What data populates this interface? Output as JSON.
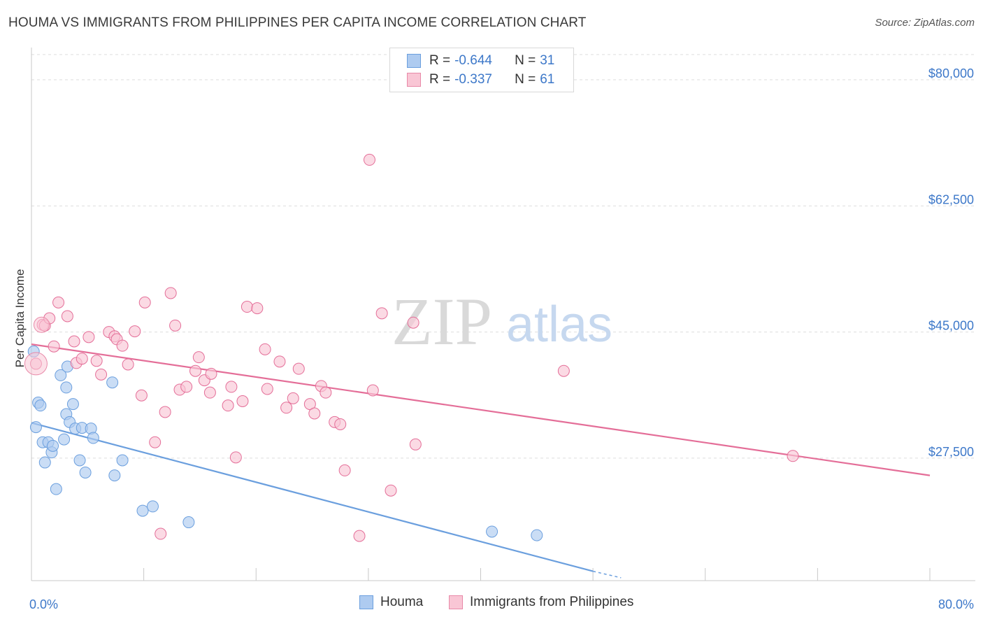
{
  "title": "HOUMA VS IMMIGRANTS FROM PHILIPPINES PER CAPITA INCOME CORRELATION CHART",
  "source": "Source: ZipAtlas.com",
  "watermark": {
    "zip": "ZIP",
    "atlas": "atlas"
  },
  "legend": {
    "rows": [
      {
        "r_label": "R =",
        "r_value": "-0.644",
        "n_label": "N =",
        "n_value": "31",
        "color": "#aecbf0",
        "border": "#6b9fde"
      },
      {
        "r_label": "R =",
        "r_value": "-0.337",
        "n_label": "N =",
        "n_value": "61",
        "color": "#f9c6d5",
        "border": "#e889a8"
      }
    ]
  },
  "bottom_legend": [
    {
      "label": "Houma",
      "color": "#aecbf0",
      "border": "#6b9fde"
    },
    {
      "label": "Immigrants from Philippines",
      "color": "#f9c6d5",
      "border": "#e889a8"
    }
  ],
  "chart_data": {
    "type": "scatter",
    "title": "HOUMA VS IMMIGRANTS FROM PHILIPPINES PER CAPITA INCOME CORRELATION CHART",
    "xlabel": "",
    "ylabel": "Per Capita Income",
    "xlim": [
      0,
      80
    ],
    "ylim": [
      10500,
      83500
    ],
    "x_tick_labels": [
      "0.0%",
      "80.0%"
    ],
    "y_ticks": [
      27500,
      45000,
      62500,
      80000
    ],
    "y_tick_labels": [
      "$27,500",
      "$45,000",
      "$62,500",
      "$80,000"
    ],
    "grid": true,
    "legend_position": "top-center",
    "series": [
      {
        "name": "Houma",
        "color": "#6b9fde",
        "fill": "#aecbf0",
        "points": [
          [
            0.2,
            42300
          ],
          [
            0.4,
            31800
          ],
          [
            0.6,
            35200
          ],
          [
            0.8,
            34800
          ],
          [
            1.0,
            29700
          ],
          [
            1.2,
            26900
          ],
          [
            1.5,
            29700
          ],
          [
            1.8,
            28300
          ],
          [
            1.9,
            29200
          ],
          [
            2.2,
            23200
          ],
          [
            2.6,
            39000
          ],
          [
            2.9,
            30100
          ],
          [
            3.1,
            33600
          ],
          [
            3.1,
            37300
          ],
          [
            3.2,
            40200
          ],
          [
            3.4,
            32500
          ],
          [
            3.7,
            35000
          ],
          [
            3.9,
            31600
          ],
          [
            4.3,
            27200
          ],
          [
            4.5,
            31700
          ],
          [
            4.8,
            25500
          ],
          [
            5.3,
            31600
          ],
          [
            5.5,
            30300
          ],
          [
            7.2,
            38000
          ],
          [
            7.4,
            25100
          ],
          [
            8.1,
            27200
          ],
          [
            9.9,
            20200
          ],
          [
            10.8,
            20800
          ],
          [
            14.0,
            18600
          ],
          [
            41.0,
            17300
          ],
          [
            45.0,
            16800
          ]
        ],
        "trend": {
          "x": [
            0,
            50
          ],
          "y": [
            32400,
            11800
          ],
          "dashed_to": [
            52.5,
            10900
          ]
        }
      },
      {
        "name": "Immigrants from Philippines",
        "color": "#e46e98",
        "fill": "#f9c6d5",
        "points": [
          [
            0.4,
            40600
          ],
          [
            1.0,
            46000
          ],
          [
            1.2,
            45900
          ],
          [
            1.6,
            46900
          ],
          [
            2.0,
            43000
          ],
          [
            2.4,
            49100
          ],
          [
            3.2,
            47200
          ],
          [
            3.8,
            43700
          ],
          [
            4.0,
            40700
          ],
          [
            4.5,
            41300
          ],
          [
            5.1,
            44300
          ],
          [
            5.8,
            41000
          ],
          [
            6.2,
            39100
          ],
          [
            6.9,
            45000
          ],
          [
            7.4,
            44400
          ],
          [
            7.6,
            44000
          ],
          [
            8.1,
            43100
          ],
          [
            8.6,
            40500
          ],
          [
            9.2,
            45100
          ],
          [
            9.8,
            36200
          ],
          [
            10.1,
            49100
          ],
          [
            11.0,
            29700
          ],
          [
            11.5,
            17000
          ],
          [
            11.9,
            33900
          ],
          [
            12.4,
            50400
          ],
          [
            12.8,
            45900
          ],
          [
            13.2,
            37000
          ],
          [
            13.8,
            37400
          ],
          [
            14.6,
            39600
          ],
          [
            14.9,
            41500
          ],
          [
            15.4,
            38300
          ],
          [
            15.9,
            36600
          ],
          [
            16.0,
            39200
          ],
          [
            17.5,
            34800
          ],
          [
            17.8,
            37400
          ],
          [
            18.2,
            27600
          ],
          [
            18.8,
            35400
          ],
          [
            19.2,
            48500
          ],
          [
            20.1,
            48300
          ],
          [
            20.8,
            42600
          ],
          [
            21.0,
            37100
          ],
          [
            22.1,
            40900
          ],
          [
            22.7,
            34500
          ],
          [
            23.3,
            35800
          ],
          [
            23.8,
            39900
          ],
          [
            24.8,
            35000
          ],
          [
            25.2,
            33700
          ],
          [
            25.8,
            37500
          ],
          [
            26.2,
            36600
          ],
          [
            27.0,
            32500
          ],
          [
            27.5,
            32200
          ],
          [
            27.9,
            25800
          ],
          [
            29.2,
            16700
          ],
          [
            30.1,
            68900
          ],
          [
            30.4,
            36900
          ],
          [
            31.2,
            47600
          ],
          [
            32.0,
            23000
          ],
          [
            34.0,
            46300
          ],
          [
            34.2,
            29400
          ],
          [
            47.4,
            39600
          ],
          [
            67.8,
            27800
          ]
        ],
        "trend": {
          "x": [
            0,
            80
          ],
          "y": [
            43300,
            25100
          ]
        }
      }
    ]
  }
}
